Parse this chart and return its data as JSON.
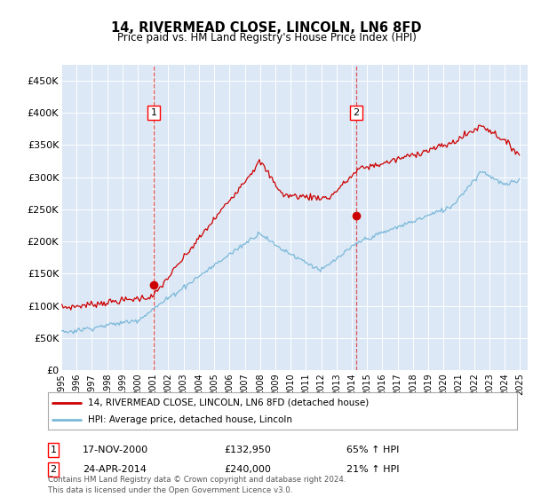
{
  "title": "14, RIVERMEAD CLOSE, LINCOLN, LN6 8FD",
  "subtitle": "Price paid vs. HM Land Registry's House Price Index (HPI)",
  "plot_bg": "#dce8f5",
  "fig_bg": "#ffffff",
  "red_line_color": "#cc0000",
  "blue_line_color": "#7ab8d9",
  "vline_color": "#dd4444",
  "annotation1_date": "17-NOV-2000",
  "annotation1_price": 132950,
  "annotation1_label": "65% ↑ HPI",
  "annotation2_date": "24-APR-2014",
  "annotation2_price": 240000,
  "annotation2_label": "21% ↑ HPI",
  "legend_line1": "14, RIVERMEAD CLOSE, LINCOLN, LN6 8FD (detached house)",
  "legend_line2": "HPI: Average price, detached house, Lincoln",
  "footer": "Contains HM Land Registry data © Crown copyright and database right 2024.\nThis data is licensed under the Open Government Licence v3.0.",
  "ylim": [
    0,
    475000
  ],
  "yticks": [
    0,
    50000,
    100000,
    150000,
    200000,
    250000,
    300000,
    350000,
    400000,
    450000
  ],
  "xlim_start": 1995,
  "xlim_end": 2025.5,
  "t1": 2001.04,
  "t2": 2014.29
}
